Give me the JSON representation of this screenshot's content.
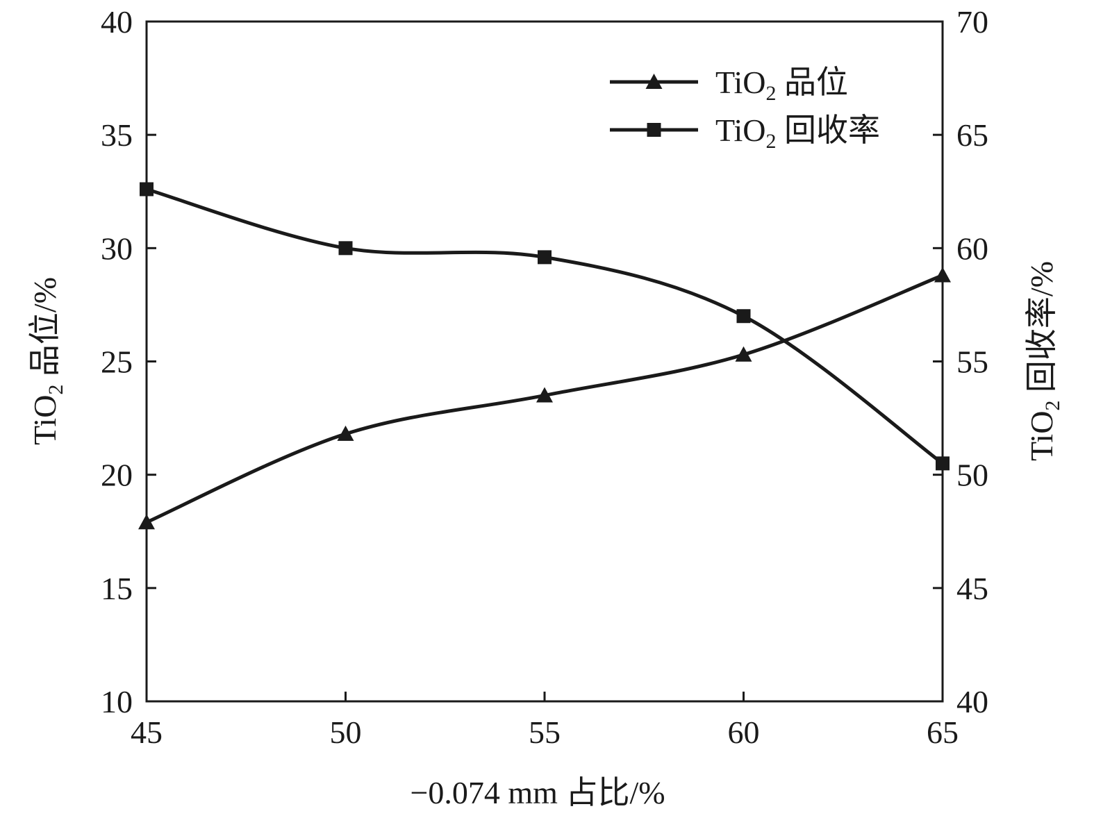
{
  "chart_data": {
    "type": "line",
    "xlabel": "−0.074 mm 占比/%",
    "ylabel_left": {
      "base": "TiO",
      "sub": "2",
      "rest": " 品位/%"
    },
    "ylabel_right": {
      "base": "TiO",
      "sub": "2",
      "rest": " 回收率/%"
    },
    "x": [
      45,
      50,
      55,
      60,
      65
    ],
    "xlim": [
      45,
      65
    ],
    "xticks": [
      45,
      50,
      55,
      60,
      65
    ],
    "ylim_left": [
      10,
      40
    ],
    "yticks_left": [
      10,
      15,
      20,
      25,
      30,
      35,
      40
    ],
    "ylim_right": [
      40,
      70
    ],
    "yticks_right": [
      40,
      45,
      50,
      55,
      60,
      65,
      70
    ],
    "grid": false,
    "legend_position": "top-right",
    "series": [
      {
        "name": {
          "base": "TiO",
          "sub": "2",
          "rest": " 品位"
        },
        "axis": "left",
        "marker": "triangle",
        "values": [
          17.9,
          21.8,
          23.5,
          25.3,
          28.8
        ]
      },
      {
        "name": {
          "base": "TiO",
          "sub": "2",
          "rest": " 回收率"
        },
        "axis": "right",
        "marker": "square",
        "values": [
          62.6,
          60.0,
          59.6,
          57.0,
          50.5
        ]
      }
    ],
    "line_color": "#1a1a1a"
  }
}
